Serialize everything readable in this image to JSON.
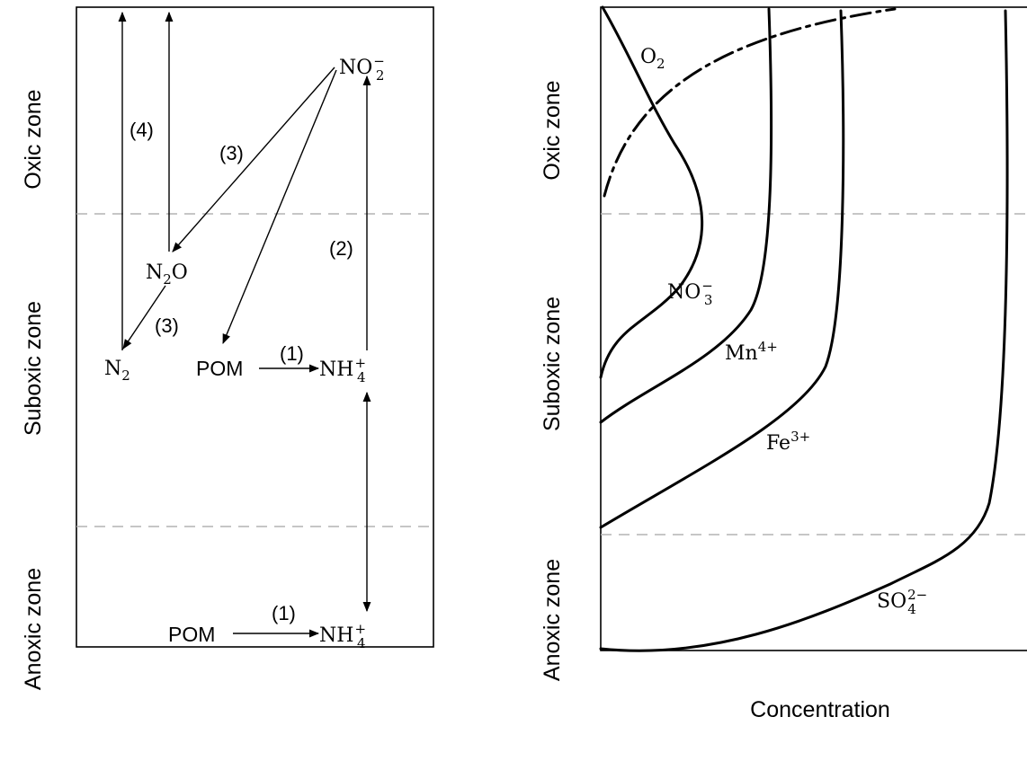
{
  "left_panel": {
    "zones": {
      "oxic": "Oxic zone",
      "suboxic": "Suboxic zone",
      "anoxic": "Anoxic zone"
    },
    "species": {
      "no2": {
        "base": "NO",
        "sub": "2",
        "sup": "−"
      },
      "n2o": {
        "base1": "N",
        "sub": "2",
        "base2": "O"
      },
      "n2": {
        "base": "N",
        "sub": "2"
      },
      "pom_suboxic": "POM",
      "nh4_suboxic": {
        "base": "NH",
        "sub": "4",
        "sup": "+"
      },
      "pom_anoxic": "POM",
      "nh4_anoxic": {
        "base": "NH",
        "sub": "4",
        "sup": "+"
      }
    },
    "process_labels": {
      "p1_suboxic": "(1)",
      "p1_anoxic": "(1)",
      "p2": "(2)",
      "p3_upper": "(3)",
      "p3_lower": "(3)",
      "p4": "(4)"
    }
  },
  "right_panel": {
    "zones": {
      "oxic": "Oxic zone",
      "suboxic": "Suboxic zone",
      "anoxic": "Anoxic zone"
    },
    "xlabel": "Concentration",
    "curves": {
      "o2": {
        "base": "O",
        "sub": "2"
      },
      "no3": {
        "base": "NO",
        "sub": "3",
        "sup": "−"
      },
      "mn": {
        "base": "Mn",
        "sup": "4+"
      },
      "fe": {
        "base": "Fe",
        "sup": "3+"
      },
      "so4": {
        "base": "SO",
        "sub": "4",
        "sup": "2−"
      }
    }
  }
}
